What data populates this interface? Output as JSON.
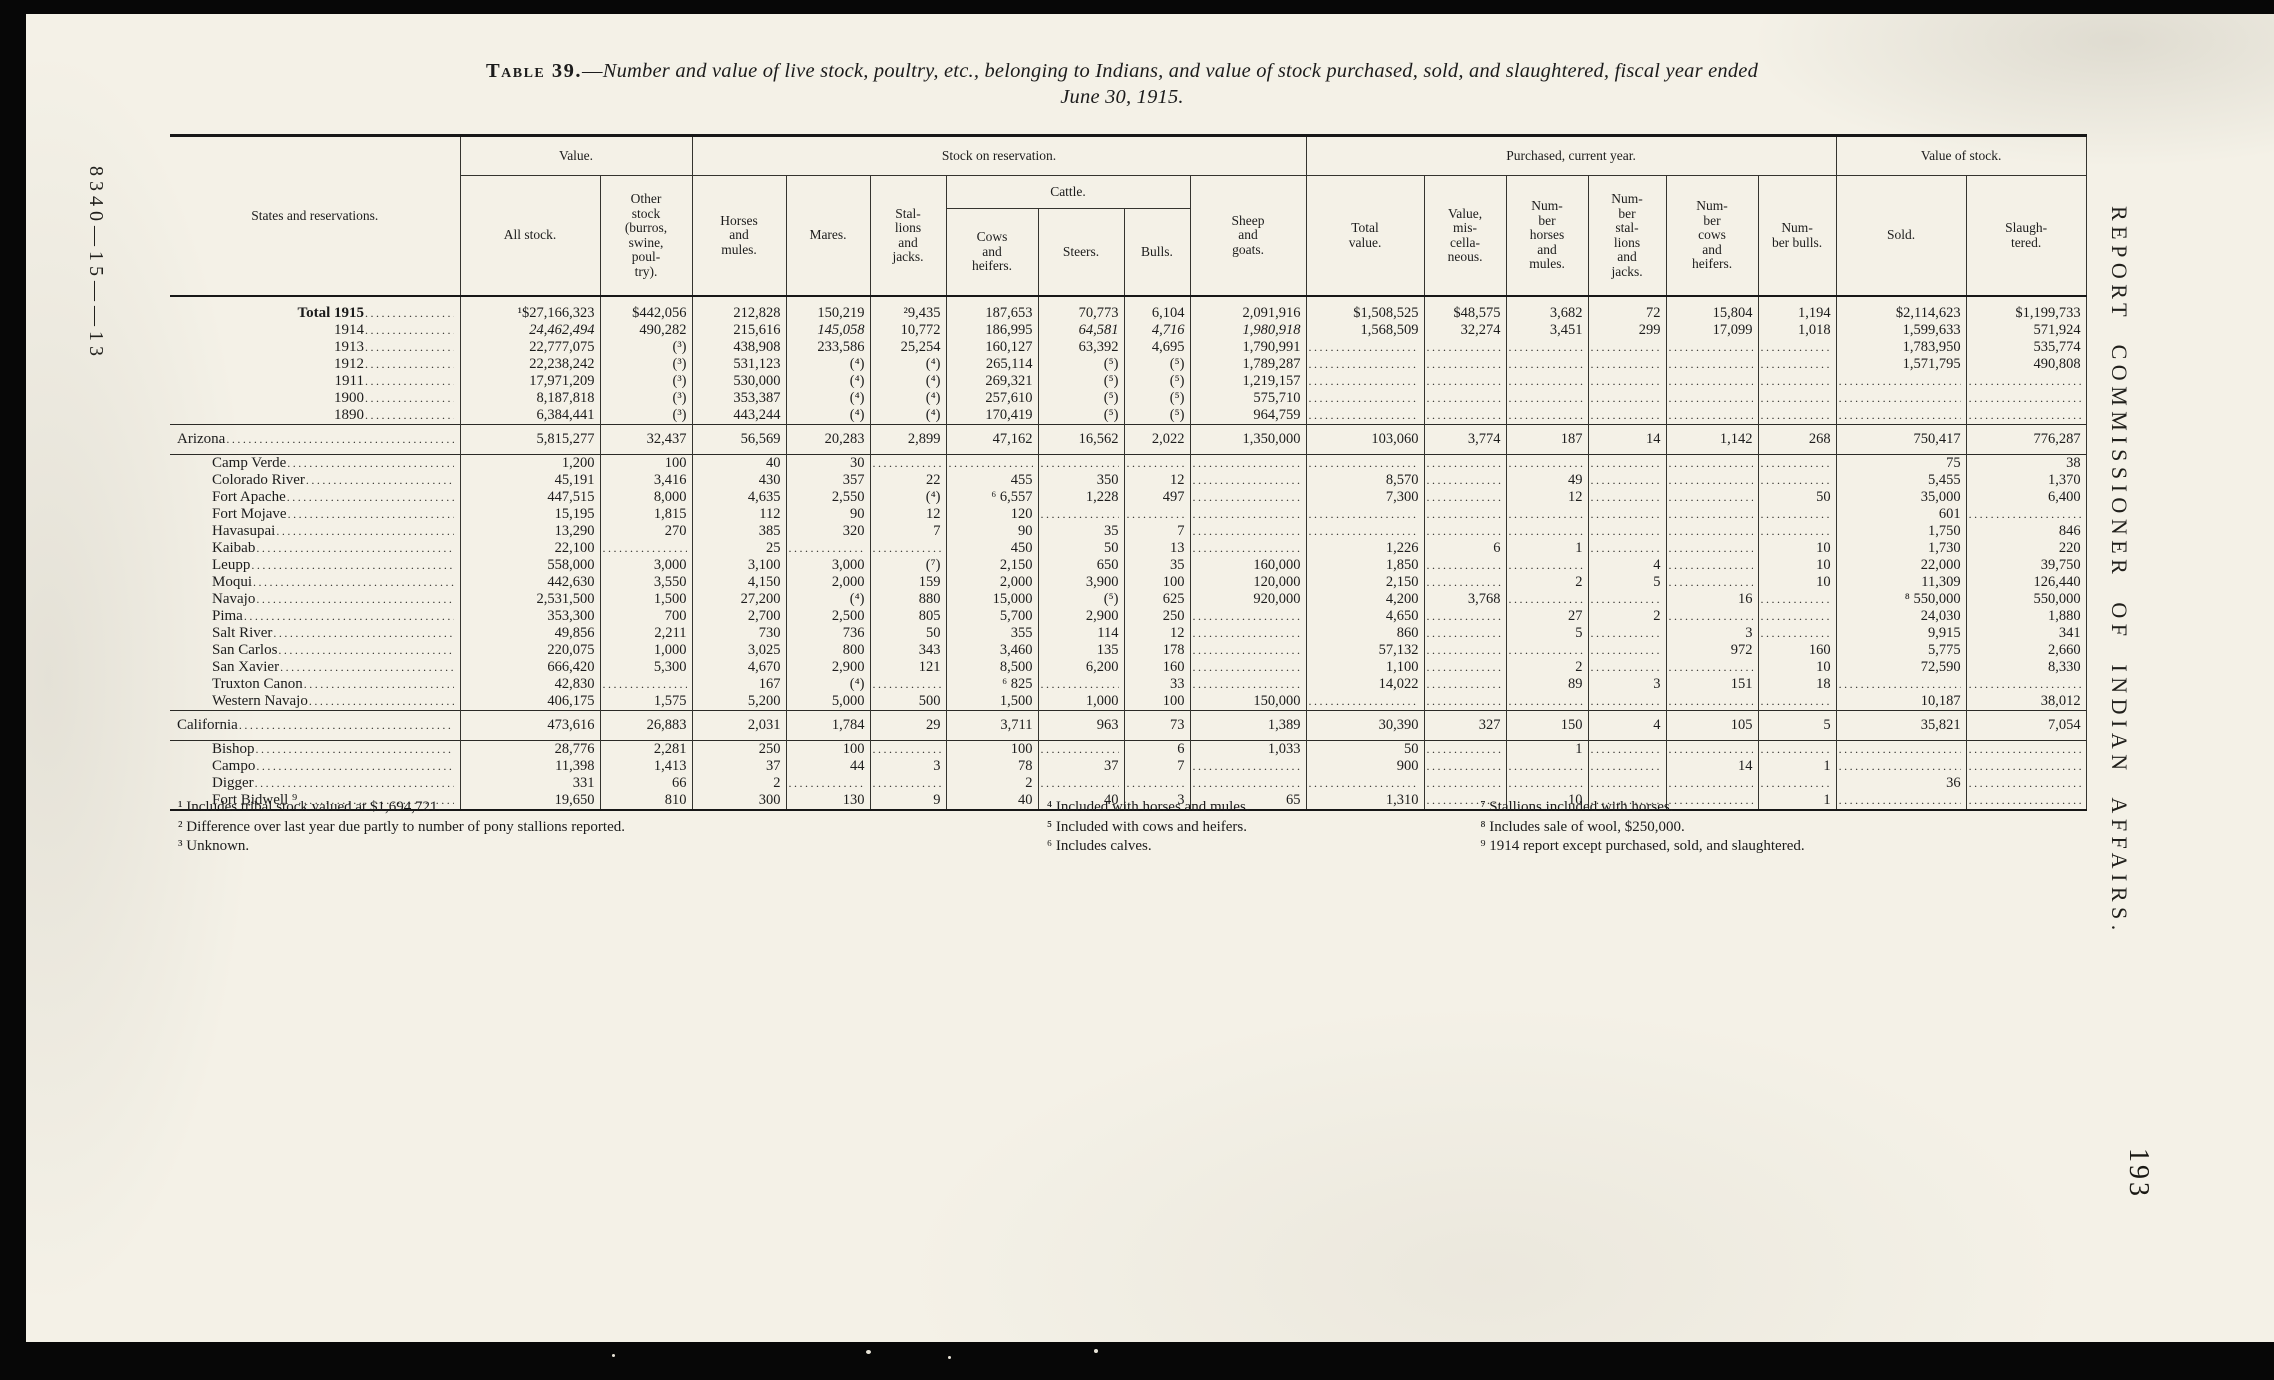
{
  "page": {
    "margin_left_text": "8340—15——13",
    "margin_right_text": "REPORT COMMISSIONER OF INDIAN AFFAIRS.",
    "page_number": "193"
  },
  "title": {
    "label": "Table 39.",
    "dash": "—",
    "text": "Number and value of live stock, poultry, etc., belonging to Indians, and value of stock purchased, sold, and slaughtered, fiscal year ended",
    "line2": "June 30, 1915."
  },
  "table": {
    "header": {
      "states": "States and reservations.",
      "group_value": "Value.",
      "group_stock": "Stock on reservation.",
      "group_purchased": "Purchased, current year.",
      "group_value_of_stock": "Value of stock.",
      "cattle": "Cattle.",
      "col_all_stock": "All stock.",
      "col_other_stock": "Other\nstock\n(burros,\nswine,\npoul-\ntry).",
      "col_horses_mules": "Horses\nand\nmules.",
      "col_mares": "Mares.",
      "col_stallions": "Stal-\nlions\nand\njacks.",
      "col_cows": "Cows\nand\nheifers.",
      "col_steers": "Steers.",
      "col_bulls": "Bulls.",
      "col_sheep": "Sheep\nand\ngoats.",
      "col_total_value": "Total\nvalue.",
      "col_value_misc": "Value,\nmis-\ncella-\nneous.",
      "col_num_horses": "Num-\nber\nhorses\nand\nmules.",
      "col_num_stallions": "Num-\nber\nstal-\nlions\nand\njacks.",
      "col_num_cows": "Num-\nber\ncows\nand\nheifers.",
      "col_num_bulls": "Num-\nber bulls.",
      "col_sold": "Sold.",
      "col_slaughtered": "Slaugh-\ntered."
    },
    "rows": [
      {
        "label": "Total 1915",
        "type": "total",
        "cells": [
          "¹$27,166,323",
          "$442,056",
          "212,828",
          "150,219",
          "²9,435",
          "187,653",
          "70,773",
          "6,104",
          "2,091,916",
          "$1,508,525",
          "$48,575",
          "3,682",
          "72",
          "15,804",
          "1,194",
          "$2,114,623",
          "$1,199,733"
        ]
      },
      {
        "label": "1914",
        "type": "total",
        "italics": [
          0,
          3,
          6,
          7,
          8
        ],
        "cells": [
          "24,462,494",
          "490,282",
          "215,616",
          "145,058",
          "10,772",
          "186,995",
          "64,581",
          "4,716",
          "1,980,918",
          "1,568,509",
          "32,274",
          "3,451",
          "299",
          "17,099",
          "1,018",
          "1,599,633",
          "571,924"
        ]
      },
      {
        "label": "1913",
        "type": "total",
        "cells": [
          "22,777,075",
          "(³)",
          "438,908",
          "233,586",
          "25,254",
          "160,127",
          "63,392",
          "4,695",
          "1,790,991",
          "",
          "",
          "",
          "",
          "",
          "",
          "1,783,950",
          "535,774"
        ]
      },
      {
        "label": "1912",
        "type": "total",
        "cells": [
          "22,238,242",
          "(³)",
          "531,123",
          "(⁴)",
          "(⁴)",
          "265,114",
          "(⁵)",
          "(⁵)",
          "1,789,287",
          "",
          "",
          "",
          "",
          "",
          "",
          "1,571,795",
          "490,808"
        ]
      },
      {
        "label": "1911",
        "type": "total",
        "cells": [
          "17,971,209",
          "(³)",
          "530,000",
          "(⁴)",
          "(⁴)",
          "269,321",
          "(⁵)",
          "(⁵)",
          "1,219,157",
          "",
          "",
          "",
          "",
          "",
          "",
          "",
          ""
        ]
      },
      {
        "label": "1900",
        "type": "total",
        "cells": [
          "8,187,818",
          "(³)",
          "353,387",
          "(⁴)",
          "(⁴)",
          "257,610",
          "(⁵)",
          "(⁵)",
          "575,710",
          "",
          "",
          "",
          "",
          "",
          "",
          "",
          ""
        ]
      },
      {
        "label": "1890",
        "type": "total",
        "cells": [
          "6,384,441",
          "(³)",
          "443,244",
          "(⁴)",
          "(⁴)",
          "170,419",
          "(⁵)",
          "(⁵)",
          "964,759",
          "",
          "",
          "",
          "",
          "",
          "",
          "",
          ""
        ]
      },
      {
        "label": "Arizona",
        "type": "state",
        "rule_above": true,
        "cells": [
          "5,815,277",
          "32,437",
          "56,569",
          "20,283",
          "2,899",
          "47,162",
          "16,562",
          "2,022",
          "1,350,000",
          "103,060",
          "3,774",
          "187",
          "14",
          "1,142",
          "268",
          "750,417",
          "776,287"
        ]
      },
      {
        "label": "Camp Verde",
        "type": "sub",
        "rule_above": true,
        "cells": [
          "1,200",
          "100",
          "40",
          "30",
          "",
          "",
          "",
          "",
          "",
          "",
          "",
          "",
          "",
          "",
          "",
          "75",
          "38"
        ]
      },
      {
        "label": "Colorado River",
        "type": "sub",
        "cells": [
          "45,191",
          "3,416",
          "430",
          "357",
          "22",
          "455",
          "350",
          "12",
          "",
          "8,570",
          "",
          "49",
          "",
          "",
          "",
          "5,455",
          "1,370"
        ]
      },
      {
        "label": "Fort Apache",
        "type": "sub",
        "cells": [
          "447,515",
          "8,000",
          "4,635",
          "2,550",
          "(⁴)",
          "⁶ 6,557",
          "1,228",
          "497",
          "",
          "7,300",
          "",
          "12",
          "",
          "",
          "50",
          "35,000",
          "6,400"
        ]
      },
      {
        "label": "Fort Mojave",
        "type": "sub",
        "cells": [
          "15,195",
          "1,815",
          "112",
          "90",
          "12",
          "120",
          "",
          "",
          "",
          "",
          "",
          "",
          "",
          "",
          "",
          "601",
          ""
        ]
      },
      {
        "label": "Havasupai",
        "type": "sub",
        "cells": [
          "13,290",
          "270",
          "385",
          "320",
          "7",
          "90",
          "35",
          "7",
          "",
          "",
          "",
          "",
          "",
          "",
          "",
          "1,750",
          "846"
        ]
      },
      {
        "label": "Kaibab",
        "type": "sub",
        "cells": [
          "22,100",
          "",
          "25",
          "",
          "",
          "450",
          "50",
          "13",
          "",
          "1,226",
          "6",
          "1",
          "",
          "",
          "10",
          "1,730",
          "220"
        ]
      },
      {
        "label": "Leupp",
        "type": "sub",
        "cells": [
          "558,000",
          "3,000",
          "3,100",
          "3,000",
          "(⁷)",
          "2,150",
          "650",
          "35",
          "160,000",
          "1,850",
          "",
          "",
          "4",
          "",
          "10",
          "22,000",
          "39,750"
        ]
      },
      {
        "label": "Moqui",
        "type": "sub",
        "cells": [
          "442,630",
          "3,550",
          "4,150",
          "2,000",
          "159",
          "2,000",
          "3,900",
          "100",
          "120,000",
          "2,150",
          "",
          "2",
          "5",
          "",
          "10",
          "11,309",
          "126,440"
        ]
      },
      {
        "label": "Navajo",
        "type": "sub",
        "cells": [
          "2,531,500",
          "1,500",
          "27,200",
          "(⁴)",
          "880",
          "15,000",
          "(⁵)",
          "625",
          "920,000",
          "4,200",
          "3,768",
          "",
          "",
          "16",
          "",
          "⁸ 550,000",
          "550,000"
        ]
      },
      {
        "label": "Pima",
        "type": "sub",
        "cells": [
          "353,300",
          "700",
          "2,700",
          "2,500",
          "805",
          "5,700",
          "2,900",
          "250",
          "",
          "4,650",
          "",
          "27",
          "2",
          "",
          "",
          "24,030",
          "1,880"
        ]
      },
      {
        "label": "Salt River",
        "type": "sub",
        "cells": [
          "49,856",
          "2,211",
          "730",
          "736",
          "50",
          "355",
          "114",
          "12",
          "",
          "860",
          "",
          "5",
          "",
          "3",
          "",
          "9,915",
          "341"
        ]
      },
      {
        "label": "San Carlos",
        "type": "sub",
        "cells": [
          "220,075",
          "1,000",
          "3,025",
          "800",
          "343",
          "3,460",
          "135",
          "178",
          "",
          "57,132",
          "",
          "",
          "",
          "972",
          "160",
          "5,775",
          "2,660"
        ]
      },
      {
        "label": "San Xavier",
        "type": "sub",
        "cells": [
          "666,420",
          "5,300",
          "4,670",
          "2,900",
          "121",
          "8,500",
          "6,200",
          "160",
          "",
          "1,100",
          "",
          "2",
          "",
          "",
          "10",
          "72,590",
          "8,330"
        ]
      },
      {
        "label": "Truxton Canon",
        "type": "sub",
        "cells": [
          "42,830",
          "",
          "167",
          "(⁴)",
          "",
          "⁶ 825",
          "",
          "33",
          "",
          "14,022",
          "",
          "89",
          "3",
          "151",
          "18",
          "",
          ""
        ]
      },
      {
        "label": "Western Navajo",
        "type": "sub",
        "cells": [
          "406,175",
          "1,575",
          "5,200",
          "5,000",
          "500",
          "1,500",
          "1,000",
          "100",
          "150,000",
          "",
          "",
          "",
          "",
          "",
          "",
          "10,187",
          "38,012"
        ]
      },
      {
        "label": "California",
        "type": "state",
        "rule_above": true,
        "cells": [
          "473,616",
          "26,883",
          "2,031",
          "1,784",
          "29",
          "3,711",
          "963",
          "73",
          "1,389",
          "30,390",
          "327",
          "150",
          "4",
          "105",
          "5",
          "35,821",
          "7,054"
        ]
      },
      {
        "label": "Bishop",
        "type": "sub",
        "rule_above": true,
        "cells": [
          "28,776",
          "2,281",
          "250",
          "100",
          "",
          "100",
          "",
          "6",
          "1,033",
          "50",
          "",
          "1",
          "",
          "",
          "",
          "",
          ""
        ]
      },
      {
        "label": "Campo",
        "type": "sub",
        "cells": [
          "11,398",
          "1,413",
          "37",
          "44",
          "3",
          "78",
          "37",
          "7",
          "",
          "900",
          "",
          "",
          "",
          "14",
          "1",
          "",
          ""
        ]
      },
      {
        "label": "Digger",
        "type": "sub",
        "cells": [
          "331",
          "66",
          "2",
          "",
          "",
          "2",
          "",
          "",
          "",
          "",
          "",
          "",
          "",
          "",
          "",
          "36",
          ""
        ]
      },
      {
        "label": "Fort Bidwell ⁹",
        "type": "sub",
        "cells": [
          "19,650",
          "810",
          "300",
          "130",
          "9",
          "40",
          "40",
          "3",
          "65",
          "1,310",
          "",
          "10",
          "",
          "",
          "1",
          "",
          ""
        ]
      }
    ]
  },
  "footnotes": {
    "col1": [
      "¹ Includes tribal stock valued at $1,694,721.",
      "² Difference over last year due partly to number of pony stallions reported.",
      "³ Unknown."
    ],
    "col2": [
      "⁴ Included with horses and mules.",
      "⁵ Included with cows and heifers.",
      "⁶ Includes calves."
    ],
    "col3": [
      "⁷ Stallions included with horses.",
      "⁸ Includes sale of wool, $250,000.",
      "⁹ 1914 report except purchased, sold, and slaughtered."
    ]
  }
}
